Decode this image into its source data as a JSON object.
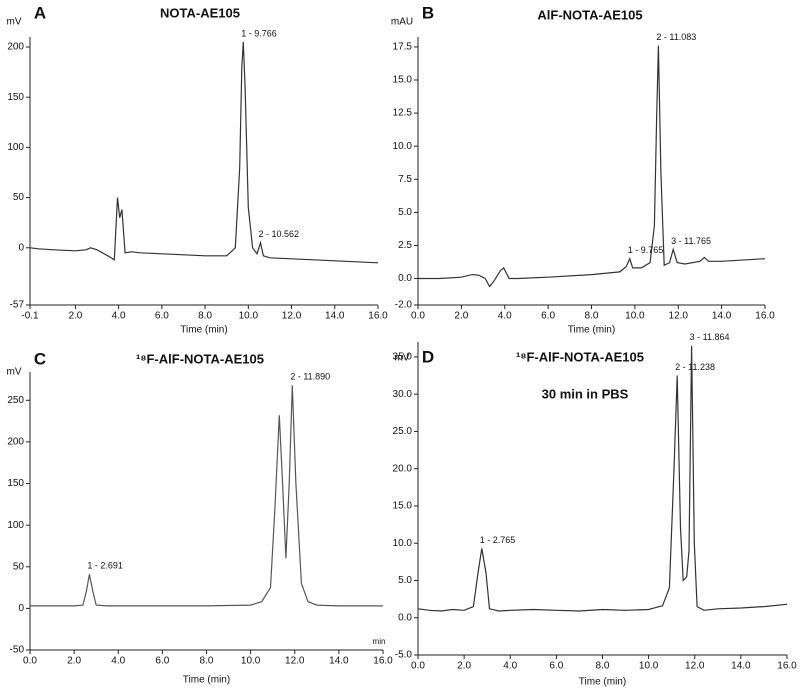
{
  "chart_data": [
    {
      "type": "line",
      "panel_label": "A",
      "title": "NOTA-AE105",
      "y_label": "mV",
      "x_label": "Time (min)",
      "color": "#333333",
      "xlim": [
        -0.1,
        16.0
      ],
      "ylim": [
        -57,
        210
      ],
      "xticks": [
        -0.1,
        {
          "value": 2,
          "label": "2.0"
        },
        {
          "value": 4,
          "label": "4.0"
        },
        {
          "value": 6,
          "label": "6.0"
        },
        {
          "value": 8,
          "label": "8.0"
        },
        {
          "value": 10,
          "label": "10.0"
        },
        {
          "value": 12,
          "label": "12.0"
        },
        {
          "value": 14,
          "label": "14.0"
        },
        {
          "value": 16,
          "label": "16.0"
        }
      ],
      "yticks": [
        -57,
        0,
        50,
        100,
        150,
        200
      ],
      "x": [
        -0.1,
        0.3,
        1.0,
        2.0,
        2.5,
        2.7,
        3.0,
        3.5,
        3.8,
        3.95,
        4.05,
        4.15,
        4.3,
        4.6,
        5.0,
        6.0,
        7.0,
        8.0,
        9.0,
        9.4,
        9.6,
        9.7,
        9.766,
        9.85,
        10.0,
        10.2,
        10.4,
        10.562,
        10.7,
        11.0,
        12.0,
        13.0,
        14.0,
        15.0,
        16.0
      ],
      "values": [
        0,
        -1,
        -2,
        -3,
        -2,
        0,
        -2,
        -8,
        -12,
        50,
        30,
        38,
        -5,
        -4,
        -5,
        -6,
        -7,
        -8,
        -8,
        0,
        80,
        180,
        205,
        160,
        40,
        0,
        -6,
        5,
        -8,
        -10,
        -11,
        -12,
        -13,
        -14,
        -15
      ],
      "annotations": [
        {
          "text": "1 - 9.766",
          "x": 9.766,
          "y": 205
        },
        {
          "text": "2 - 10.562",
          "x": 10.562,
          "y": 5
        }
      ]
    },
    {
      "type": "line",
      "panel_label": "B",
      "title": "AlF-NOTA-AE105",
      "y_label": "mAU",
      "x_label": "Time (min)",
      "color": "#333333",
      "xlim": [
        0,
        16.0
      ],
      "ylim": [
        -2.0,
        18.25
      ],
      "xticks": [
        {
          "value": 0,
          "label": "0.0"
        },
        {
          "value": 2,
          "label": "2.0"
        },
        {
          "value": 4,
          "label": "4.0"
        },
        {
          "value": 6,
          "label": "6.0"
        },
        {
          "value": 8,
          "label": "8.0"
        },
        {
          "value": 10,
          "label": "10.0"
        },
        {
          "value": 12,
          "label": "12.0"
        },
        {
          "value": 14,
          "label": "14.0"
        },
        {
          "value": 16,
          "label": "16.0"
        }
      ],
      "yticks": [
        {
          "value": -2,
          "label": "-2.0"
        },
        {
          "value": 0,
          "label": "0.0"
        },
        2.5,
        {
          "value": 5,
          "label": "5.0"
        },
        7.5,
        {
          "value": 10,
          "label": "10.0"
        },
        12.5,
        {
          "value": 15,
          "label": "15.0"
        },
        17.5
      ],
      "x": [
        0,
        1,
        2,
        2.5,
        2.8,
        3.1,
        3.3,
        3.5,
        3.8,
        3.95,
        4.2,
        4.6,
        6,
        8,
        9.3,
        9.6,
        9.765,
        9.9,
        10.3,
        10.7,
        10.9,
        11.0,
        11.083,
        11.2,
        11.35,
        11.6,
        11.765,
        11.95,
        12.3,
        13.0,
        13.2,
        13.4,
        14,
        16
      ],
      "values": [
        0,
        0,
        0.1,
        0.3,
        0.25,
        0,
        -0.6,
        -0.2,
        0.6,
        0.8,
        0,
        0,
        0.1,
        0.3,
        0.5,
        0.9,
        1.5,
        0.8,
        0.8,
        1.2,
        4,
        12,
        17.6,
        8,
        1.0,
        1.2,
        2.2,
        1.2,
        1.1,
        1.3,
        1.6,
        1.3,
        1.3,
        1.5
      ],
      "annotations": [
        {
          "text": "1 - 9.765",
          "x": 9.765,
          "y": 1.5
        },
        {
          "text": "2 - 11.083",
          "x": 11.083,
          "y": 17.6
        },
        {
          "text": "3 - 11.765",
          "x": 11.765,
          "y": 2.2
        }
      ]
    },
    {
      "type": "line",
      "panel_label": "C",
      "title": "¹⁸F-AlF-NOTA-AE105",
      "y_label": "mV",
      "x_label": "Time (min)",
      "x_unit": "min",
      "color": "#555555",
      "xlim": [
        0,
        16.0
      ],
      "ylim": [
        -50,
        284
      ],
      "xticks": [
        {
          "value": 0,
          "label": "0.0"
        },
        {
          "value": 2,
          "label": "2.0"
        },
        {
          "value": 4,
          "label": "4.0"
        },
        {
          "value": 6,
          "label": "6.0"
        },
        {
          "value": 8,
          "label": "8.0"
        },
        {
          "value": 10,
          "label": "10.0"
        },
        {
          "value": 12,
          "label": "12.0"
        },
        {
          "value": 14,
          "label": "14.0"
        },
        {
          "value": 16,
          "label": "16.0"
        }
      ],
      "yticks": [
        -50,
        0,
        50,
        100,
        150,
        200,
        250
      ],
      "x": [
        0,
        1,
        2,
        2.4,
        2.55,
        2.691,
        2.85,
        3.0,
        3.5,
        5,
        8,
        10,
        10.5,
        10.9,
        11.1,
        11.3,
        11.45,
        11.6,
        11.75,
        11.89,
        12.05,
        12.3,
        12.6,
        13,
        14,
        16
      ],
      "values": [
        3,
        3,
        3,
        4,
        20,
        41,
        20,
        4,
        3,
        3,
        3,
        4,
        8,
        25,
        120,
        232,
        150,
        60,
        150,
        268,
        150,
        30,
        8,
        4,
        3,
        3
      ],
      "annotations": [
        {
          "text": "1 - 2.691",
          "x": 2.691,
          "y": 41
        },
        {
          "text": "2 - 11.890",
          "x": 11.89,
          "y": 268
        }
      ]
    },
    {
      "type": "line",
      "panel_label": "D",
      "title": "¹⁸F-AlF-NOTA-AE105",
      "subtitle": "30 min in PBS",
      "y_label": "mV",
      "x_label": "Time (min)",
      "color": "#333333",
      "xlim": [
        0,
        16.0
      ],
      "ylim": [
        -5,
        37
      ],
      "xticks": [
        {
          "value": 0,
          "label": "0.0"
        },
        {
          "value": 2,
          "label": "2.0"
        },
        {
          "value": 4,
          "label": "4.0"
        },
        {
          "value": 6,
          "label": "6.0"
        },
        {
          "value": 8,
          "label": "8.0"
        },
        {
          "value": 10,
          "label": "10.0"
        },
        {
          "value": 12,
          "label": "12.0"
        },
        {
          "value": 14,
          "label": "14.0"
        },
        {
          "value": 16,
          "label": "16.0"
        }
      ],
      "yticks": [
        {
          "value": -5,
          "label": "-5.0"
        },
        {
          "value": 0,
          "label": "0.0"
        },
        {
          "value": 5,
          "label": "5.0"
        },
        {
          "value": 10,
          "label": "10.0"
        },
        {
          "value": 15,
          "label": "15.0"
        },
        {
          "value": 20,
          "label": "20.0"
        },
        {
          "value": 25,
          "label": "25.0"
        },
        {
          "value": 30,
          "label": "30.0"
        },
        {
          "value": 35,
          "label": "35.0"
        }
      ],
      "x": [
        0,
        0.5,
        1,
        1.5,
        2,
        2.4,
        2.6,
        2.765,
        2.95,
        3.1,
        3.5,
        4,
        5,
        6,
        7,
        8,
        9,
        10,
        10.6,
        10.9,
        11.1,
        11.238,
        11.38,
        11.5,
        11.65,
        11.75,
        11.864,
        11.98,
        12.1,
        12.4,
        13,
        14,
        15,
        16
      ],
      "values": [
        1.2,
        1.0,
        0.9,
        1.1,
        1.0,
        1.5,
        6,
        9.3,
        6,
        1.2,
        0.9,
        1.0,
        1.1,
        1.0,
        0.9,
        1.1,
        1.0,
        1.1,
        1.6,
        4,
        20,
        32.5,
        12,
        5,
        5.5,
        9,
        36.5,
        10,
        1.5,
        1.0,
        1.2,
        1.3,
        1.5,
        1.8
      ],
      "annotations": [
        {
          "text": "1 - 2.765",
          "x": 2.765,
          "y": 9.3
        },
        {
          "text": "2 - 11.238",
          "x": 11.238,
          "y": 32.5
        },
        {
          "text": "3 - 11.864",
          "x": 11.864,
          "y": 36.5
        }
      ]
    }
  ]
}
